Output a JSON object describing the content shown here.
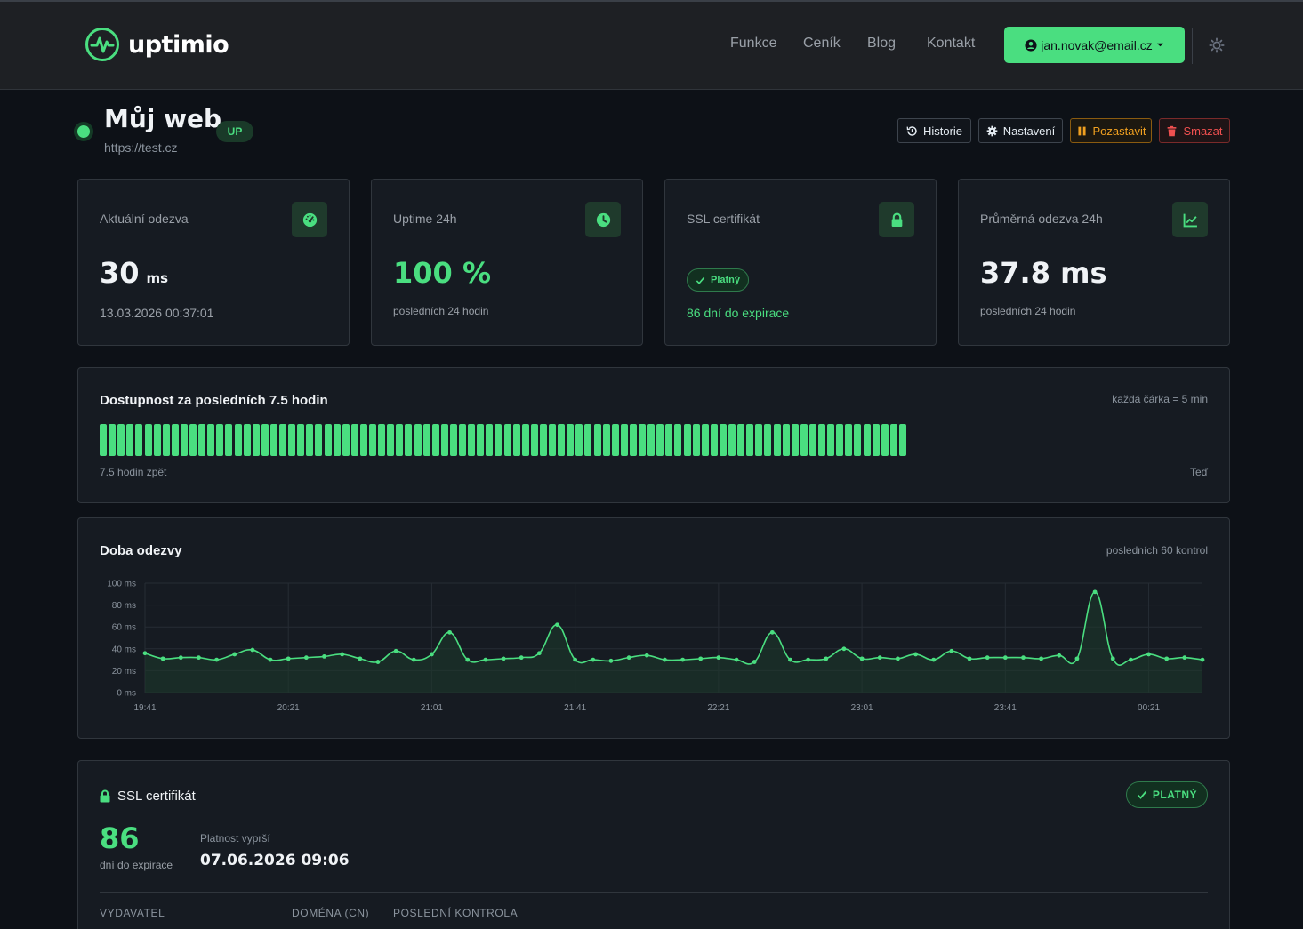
{
  "brand": {
    "name": "uptimio",
    "accent": "#4ade80"
  },
  "nav": {
    "links": [
      "Funkce",
      "Ceník",
      "Blog",
      "Kontakt"
    ],
    "user_email": "jan.novak@email.cz"
  },
  "monitor": {
    "name": "Můj web",
    "url": "https://test.cz",
    "status_badge": "UP",
    "actions": {
      "history": "Historie",
      "settings": "Nastavení",
      "pause": "Pozastavit",
      "delete": "Smazat"
    }
  },
  "stats": {
    "response": {
      "label": "Aktuální odezva",
      "value": "30",
      "unit": "ms",
      "timestamp": "13.03.2026 00:37:01"
    },
    "uptime": {
      "label": "Uptime 24h",
      "value": "100 %",
      "sub": "posledních 24 hodin"
    },
    "ssl": {
      "label": "SSL certifikát",
      "badge": "Platný",
      "sub": "86 dní do expirace"
    },
    "avg": {
      "label": "Průměrná odezva 24h",
      "value": "37.8 ms",
      "sub": "posledních 24 hodin"
    }
  },
  "availability": {
    "title": "Dostupnost za posledních 7.5 hodin",
    "hint": "každá čárka = 5 min",
    "start_label": "7.5 hodin zpět",
    "end_label": "Teď",
    "bars": [
      1,
      1,
      1,
      1,
      1,
      1,
      1,
      1,
      1,
      1,
      1,
      1,
      1,
      1,
      1,
      1,
      1,
      1,
      1,
      1,
      1,
      1,
      1,
      1,
      1,
      1,
      1,
      1,
      1,
      1,
      1,
      1,
      1,
      1,
      1,
      1,
      1,
      1,
      1,
      1,
      1,
      1,
      1,
      1,
      1,
      1,
      1,
      1,
      1,
      1,
      1,
      1,
      1,
      1,
      1,
      1,
      1,
      1,
      1,
      1,
      1,
      1,
      1,
      1,
      1,
      1,
      1,
      1,
      1,
      1,
      1,
      1,
      1,
      1,
      1,
      1,
      1,
      1,
      1,
      1,
      1,
      1,
      1,
      1,
      1,
      1,
      1,
      1,
      1,
      1
    ]
  },
  "response_chart": {
    "title": "Doba odezvy",
    "hint": "posledních 60 kontrol"
  },
  "chart_data": {
    "type": "area",
    "ylim": [
      0,
      100
    ],
    "yticks": [
      "0 ms",
      "20 ms",
      "40 ms",
      "60 ms",
      "80 ms",
      "100 ms"
    ],
    "xticks": [
      "19:41",
      "20:21",
      "21:01",
      "21:41",
      "22:21",
      "23:01",
      "23:41",
      "00:21"
    ],
    "values": [
      36,
      31,
      32,
      32,
      30,
      35,
      39,
      30,
      31,
      32,
      33,
      35,
      31,
      28,
      38,
      30,
      35,
      55,
      30,
      30,
      31,
      32,
      36,
      62,
      30,
      30,
      29,
      32,
      34,
      30,
      30,
      31,
      32,
      30,
      28,
      55,
      30,
      30,
      31,
      40,
      31,
      32,
      31,
      35,
      30,
      38,
      31,
      32,
      32,
      32,
      31,
      34,
      31,
      92,
      31,
      30,
      35,
      31,
      32,
      30
    ],
    "xlabel": "",
    "ylabel": "",
    "grid": true
  },
  "ssl_section": {
    "title": "SSL certifikát",
    "badge": "PLATNÝ",
    "days_value": "86",
    "days_label": "dní do expirace",
    "expiry_label": "Platnost vyprší",
    "expiry_value": "07.06.2026 09:06",
    "columns": [
      "VYDAVATEL",
      "DOMÉNA (CN)",
      "POSLEDNÍ KONTROLA"
    ]
  }
}
